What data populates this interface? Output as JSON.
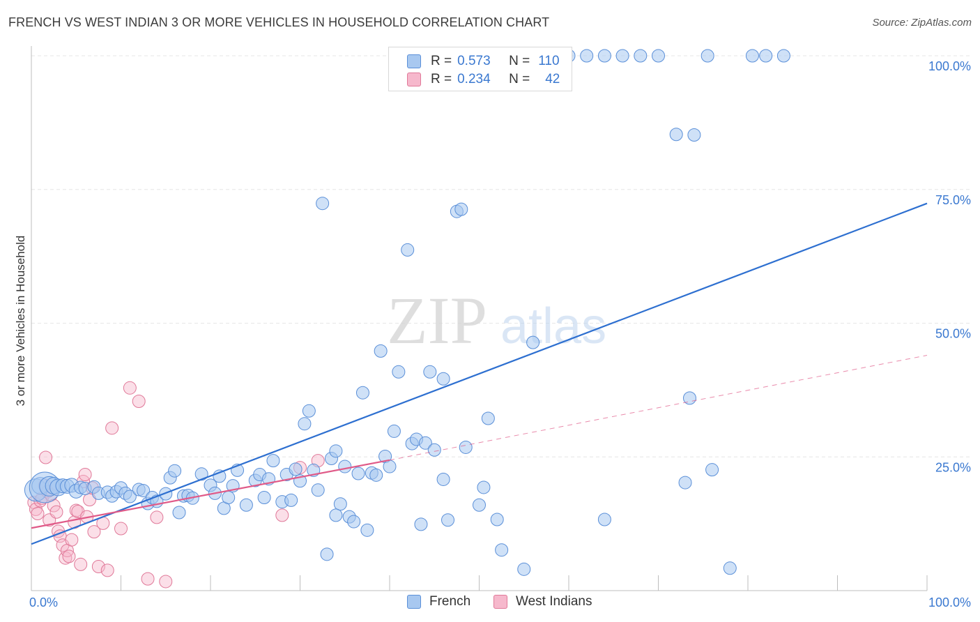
{
  "header": {
    "title": "FRENCH VS WEST INDIAN 3 OR MORE VEHICLES IN HOUSEHOLD CORRELATION CHART",
    "source": "Source: ZipAtlas.com"
  },
  "watermark": {
    "zip": "ZIP",
    "atlas": "atlas"
  },
  "legend": {
    "rows": [
      {
        "r_label": "R =",
        "r_value": "0.573",
        "n_label": "N =",
        "n_value": "110"
      },
      {
        "r_label": "R =",
        "r_value": "0.234",
        "n_label": "N =",
        "n_value": "42"
      }
    ]
  },
  "colors": {
    "french_fill": "#a8c8f0",
    "french_stroke": "#5a8fd8",
    "french_line": "#2d6fd0",
    "wi_fill": "#f6b8cc",
    "wi_stroke": "#e07898",
    "wi_line": "#e05a88",
    "axis_text": "#3a78d0",
    "grid": "#e6e6e6"
  },
  "chart_data": {
    "type": "scatter",
    "title": "FRENCH VS WEST INDIAN 3 OR MORE VEHICLES IN HOUSEHOLD CORRELATION CHART",
    "xlabel": "",
    "ylabel": "3 or more Vehicles in Household",
    "xlim": [
      0,
      100
    ],
    "ylim": [
      0,
      100
    ],
    "x_tick_labels": [
      "0.0%",
      "100.0%"
    ],
    "y_tick_labels": [
      "25.0%",
      "50.0%",
      "75.0%",
      "100.0%"
    ],
    "y_ticks": [
      25,
      50,
      75,
      100
    ],
    "grid": true,
    "legend_position": "top-center",
    "series": [
      {
        "name": "French",
        "r": 0.573,
        "n": 110,
        "trend": {
          "x": [
            0,
            100
          ],
          "y": [
            8.7,
            72.4
          ],
          "style": "solid"
        },
        "points": [
          [
            0.5,
            18.8,
            16
          ],
          [
            1.0,
            19.6,
            12
          ],
          [
            1.5,
            19.3,
            22
          ],
          [
            2.0,
            19.5,
            14
          ],
          [
            2.5,
            19.6,
            12
          ],
          [
            3.0,
            19.3,
            12
          ],
          [
            3.5,
            19.6,
            10
          ],
          [
            4.0,
            19.5,
            10
          ],
          [
            4.5,
            19.7,
            10
          ],
          [
            5.0,
            18.6,
            10
          ],
          [
            5.5,
            19.3,
            9
          ],
          [
            6.0,
            19.1,
            9
          ],
          [
            7.0,
            19.4,
            9
          ],
          [
            7.5,
            18.2,
            9
          ],
          [
            8.5,
            18.4,
            9
          ],
          [
            9.0,
            17.7,
            9
          ],
          [
            9.5,
            18.5,
            9
          ],
          [
            10.0,
            19.2,
            9
          ],
          [
            10.5,
            18.2,
            9
          ],
          [
            11.0,
            17.6,
            9
          ],
          [
            12.0,
            18.9,
            9
          ],
          [
            12.5,
            18.7,
            9
          ],
          [
            13.0,
            16.3,
            9
          ],
          [
            13.5,
            17.4,
            9
          ],
          [
            14.0,
            16.7,
            9
          ],
          [
            15.0,
            18.1,
            9
          ],
          [
            15.5,
            21.1,
            9
          ],
          [
            16.0,
            22.4,
            9
          ],
          [
            16.5,
            14.6,
            9
          ],
          [
            17.0,
            17.7,
            9
          ],
          [
            17.5,
            17.8,
            9
          ],
          [
            18.0,
            17.3,
            9
          ],
          [
            19.0,
            21.8,
            9
          ],
          [
            20.0,
            19.7,
            9
          ],
          [
            20.5,
            18.2,
            9
          ],
          [
            21.0,
            21.4,
            9
          ],
          [
            21.5,
            15.4,
            9
          ],
          [
            22.0,
            17.4,
            9
          ],
          [
            22.5,
            19.6,
            9
          ],
          [
            23.0,
            22.5,
            9
          ],
          [
            24.0,
            16.0,
            9
          ],
          [
            25.0,
            20.6,
            9
          ],
          [
            25.5,
            21.7,
            9
          ],
          [
            26.0,
            17.4,
            9
          ],
          [
            26.5,
            20.9,
            9
          ],
          [
            27.0,
            24.3,
            9
          ],
          [
            28.0,
            16.6,
            9
          ],
          [
            28.5,
            21.7,
            9
          ],
          [
            29.0,
            16.9,
            9
          ],
          [
            29.5,
            22.7,
            9
          ],
          [
            30.5,
            31.2,
            9
          ],
          [
            31.0,
            33.6,
            9
          ],
          [
            31.5,
            22.5,
            9
          ],
          [
            32.0,
            18.8,
            9
          ],
          [
            32.5,
            72.4,
            9
          ],
          [
            33.0,
            6.8,
            9
          ],
          [
            33.5,
            24.7,
            9
          ],
          [
            34.0,
            26.1,
            9
          ],
          [
            34.5,
            16.2,
            9
          ],
          [
            35.0,
            23.2,
            9
          ],
          [
            35.5,
            13.8,
            9
          ],
          [
            36.5,
            21.9,
            9
          ],
          [
            37.0,
            37.0,
            9
          ],
          [
            37.5,
            11.3,
            9
          ],
          [
            38.0,
            22.0,
            9
          ],
          [
            38.5,
            21.6,
            9
          ],
          [
            39.0,
            44.8,
            9
          ],
          [
            39.5,
            25.1,
            9
          ],
          [
            40.0,
            23.2,
            9
          ],
          [
            40.5,
            29.8,
            9
          ],
          [
            41.0,
            40.9,
            9
          ],
          [
            42.0,
            63.7,
            9
          ],
          [
            42.5,
            27.5,
            9
          ],
          [
            43.0,
            28.3,
            9
          ],
          [
            43.5,
            12.4,
            9
          ],
          [
            44.0,
            27.6,
            9
          ],
          [
            44.5,
            40.9,
            9
          ],
          [
            45.0,
            26.3,
            9
          ],
          [
            46.0,
            39.6,
            9
          ],
          [
            46.5,
            13.2,
            9
          ],
          [
            47.5,
            70.9,
            9
          ],
          [
            48.0,
            71.3,
            9
          ],
          [
            48.5,
            26.8,
            9
          ],
          [
            50.0,
            16.0,
            9
          ],
          [
            50.5,
            19.3,
            9
          ],
          [
            51.0,
            32.2,
            9
          ],
          [
            52.0,
            13.3,
            9
          ],
          [
            52.5,
            7.6,
            9
          ],
          [
            55.0,
            4.0,
            9
          ],
          [
            56.0,
            46.4,
            9
          ],
          [
            58.0,
            97.9,
            9
          ],
          [
            60.0,
            100.0,
            9
          ],
          [
            62.0,
            100.0,
            9
          ],
          [
            64.0,
            100.0,
            9
          ],
          [
            66.0,
            100.0,
            9
          ],
          [
            68.0,
            100.0,
            9
          ],
          [
            70.0,
            100.0,
            9
          ],
          [
            72.0,
            85.3,
            9
          ],
          [
            74.0,
            85.2,
            9
          ],
          [
            64.0,
            13.3,
            9
          ],
          [
            73.0,
            20.2,
            9
          ],
          [
            76.0,
            22.6,
            9
          ],
          [
            73.5,
            36.0,
            9
          ],
          [
            75.5,
            100.0,
            9
          ],
          [
            82.0,
            100.0,
            9
          ],
          [
            84.0,
            100.0,
            9
          ],
          [
            80.5,
            100.0,
            9
          ],
          [
            78.0,
            4.2,
            9
          ],
          [
            30.0,
            20.5,
            9
          ],
          [
            36.0,
            12.9,
            9
          ],
          [
            46.0,
            20.8,
            9
          ],
          [
            34.0,
            14.1,
            9
          ]
        ]
      },
      {
        "name": "West Indians",
        "r": 0.234,
        "n": 42,
        "trend": {
          "x": [
            0,
            40
          ],
          "y": [
            11.7,
            24.4
          ],
          "style": "solid"
        },
        "trend_extended": {
          "x": [
            40,
            100
          ],
          "y": [
            24.4,
            44.0
          ],
          "style": "dashed"
        },
        "points": [
          [
            0.3,
            16.5,
            9
          ],
          [
            0.5,
            15.2,
            9
          ],
          [
            0.7,
            14.4,
            9
          ],
          [
            1.0,
            16.8,
            9
          ],
          [
            1.2,
            17.3,
            9
          ],
          [
            1.5,
            19.7,
            9
          ],
          [
            1.8,
            18.5,
            9
          ],
          [
            2.0,
            13.2,
            9
          ],
          [
            2.2,
            17.9,
            9
          ],
          [
            2.5,
            15.9,
            9
          ],
          [
            2.8,
            14.7,
            9
          ],
          [
            3.0,
            11.1,
            9
          ],
          [
            3.2,
            10.2,
            9
          ],
          [
            3.5,
            8.5,
            9
          ],
          [
            3.8,
            6.1,
            9
          ],
          [
            4.0,
            7.5,
            9
          ],
          [
            4.2,
            6.4,
            9
          ],
          [
            4.5,
            9.5,
            9
          ],
          [
            4.8,
            12.8,
            9
          ],
          [
            5.0,
            15.0,
            9
          ],
          [
            5.2,
            14.8,
            9
          ],
          [
            5.5,
            4.9,
            9
          ],
          [
            5.8,
            20.4,
            9
          ],
          [
            6.0,
            21.7,
            9
          ],
          [
            6.2,
            13.8,
            9
          ],
          [
            6.5,
            17.0,
            9
          ],
          [
            6.8,
            19.2,
            9
          ],
          [
            7.0,
            11.0,
            9
          ],
          [
            7.5,
            4.5,
            9
          ],
          [
            8.0,
            12.6,
            9
          ],
          [
            8.5,
            3.8,
            9
          ],
          [
            9.0,
            30.4,
            9
          ],
          [
            10.0,
            11.6,
            9
          ],
          [
            11.0,
            37.9,
            9
          ],
          [
            12.0,
            35.4,
            9
          ],
          [
            13.0,
            2.2,
            9
          ],
          [
            14.0,
            13.7,
            9
          ],
          [
            15.0,
            1.7,
            9
          ],
          [
            28.0,
            14.1,
            9
          ],
          [
            30.0,
            23.0,
            9
          ],
          [
            32.0,
            24.3,
            9
          ],
          [
            1.6,
            24.9,
            9
          ]
        ]
      }
    ]
  }
}
